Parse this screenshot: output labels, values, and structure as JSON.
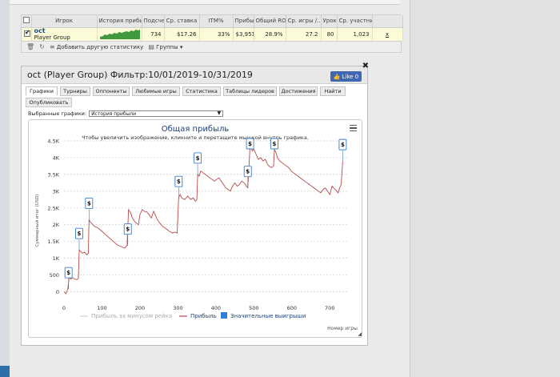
{
  "stats_table": {
    "headers": [
      "",
      "Игрок",
      "История прибы",
      "Подсче",
      "Ср. ставка",
      "ITM%",
      "Прибы",
      "Общий ROI",
      "Ср. игры /...",
      "Урок",
      "Ср. участни",
      ""
    ],
    "row": {
      "player_name": "oct",
      "player_group": "Player Group",
      "count": "734",
      "avg_stake": "$17.26",
      "itm": "33%",
      "profit": "$3,951",
      "roi": "28.9%",
      "avg_games": "27.2",
      "level": "80",
      "avg_entrants": "1,023",
      "remove": "x"
    },
    "toolbar": {
      "add_stats": "Добавить другую статистику",
      "groups": "Группы"
    }
  },
  "dialog": {
    "title": "oct (Player Group) Фильтр:10/01/2019-10/31/2019",
    "like_label": "Like 0",
    "tabs": [
      "Графики",
      "Турниры",
      "Оппоненты",
      "Любимые игры",
      "Статистика",
      "Таблицы лидеров",
      "Достижения",
      "Найти",
      "Опубликовать"
    ],
    "selected_graphs_label": "Выбранные графики:",
    "selected_graph_value": "История прибыли"
  },
  "chart_data": {
    "type": "line",
    "title": "Общая прибыль",
    "subtitle": "Чтобы увеличить изображение, кликните и перетащите мышкой внутрь графика.",
    "xlabel": "Номер игры",
    "ylabel": "Суммарный итог (USD)",
    "xlim": [
      0,
      750
    ],
    "ylim": [
      -250,
      4500
    ],
    "x_ticks": [
      0,
      100,
      200,
      300,
      400,
      500,
      600,
      700
    ],
    "y_ticks": [
      0,
      500,
      1000,
      1500,
      2000,
      2500,
      3000,
      3500,
      4000,
      4500
    ],
    "y_tick_labels": [
      "0",
      "500",
      "1K",
      "1.5K",
      "2K",
      "2.5K",
      "3K",
      "3.5K",
      "4K",
      "4.5K"
    ],
    "legend": [
      "Прибыль за минусом рейка",
      "Прибыль",
      "Значительные выигрыши"
    ],
    "legend_position": "bottom",
    "series": [
      {
        "name": "Прибыль",
        "color": "#b84a4a",
        "x": [
          0,
          5,
          10,
          14,
          18,
          22,
          28,
          34,
          38,
          40,
          44,
          48,
          54,
          60,
          64,
          66,
          68,
          72,
          80,
          90,
          100,
          110,
          120,
          130,
          140,
          150,
          160,
          166,
          170,
          176,
          180,
          186,
          190,
          196,
          200,
          206,
          212,
          218,
          224,
          230,
          236,
          240,
          246,
          252,
          260,
          266,
          272,
          278,
          286,
          292,
          298,
          302,
          306,
          310,
          318,
          326,
          334,
          340,
          346,
          350,
          352,
          356,
          360,
          366,
          372,
          378,
          384,
          390,
          396,
          402,
          408,
          414,
          420,
          426,
          432,
          438,
          444,
          450,
          456,
          462,
          468,
          474,
          478,
          480,
          484,
          490,
          496,
          500,
          506,
          512,
          518,
          524,
          530,
          536,
          540,
          546,
          552,
          554,
          558,
          562,
          568,
          574,
          580,
          586,
          592,
          598,
          604,
          610,
          616,
          622,
          628,
          634,
          640,
          646,
          652,
          658,
          664,
          670,
          676,
          682,
          688,
          694,
          700,
          706,
          710,
          714,
          718,
          722,
          726,
          730,
          734
        ],
        "values": [
          0,
          -60,
          80,
          450,
          380,
          420,
          380,
          360,
          400,
          1250,
          1200,
          1150,
          1180,
          1100,
          1150,
          2150,
          2100,
          2050,
          1950,
          1900,
          1800,
          1700,
          1600,
          1500,
          1400,
          1350,
          1300,
          1380,
          2450,
          2350,
          2200,
          2100,
          2050,
          2000,
          2300,
          2450,
          2400,
          2380,
          2300,
          2200,
          2400,
          2300,
          2150,
          2050,
          1950,
          1900,
          1850,
          1800,
          1750,
          1780,
          1750,
          2800,
          2900,
          2800,
          2750,
          2850,
          2750,
          2800,
          2700,
          2750,
          3500,
          3450,
          3600,
          3550,
          3500,
          3450,
          3400,
          3350,
          3300,
          3350,
          3400,
          3300,
          3200,
          3100,
          3050,
          3000,
          3150,
          3250,
          3150,
          3200,
          3300,
          3250,
          3200,
          3150,
          3100,
          4350,
          4200,
          4250,
          4100,
          3950,
          4000,
          3900,
          3950,
          3800,
          3750,
          3700,
          3750,
          4250,
          4150,
          4000,
          3900,
          3850,
          3800,
          3750,
          3700,
          3600,
          3550,
          3500,
          3450,
          3400,
          3350,
          3300,
          3250,
          3200,
          3150,
          3100,
          3050,
          3000,
          2950,
          3050,
          3100,
          3000,
          2900,
          3150,
          3100,
          3050,
          3000,
          2950,
          3100,
          3200,
          3900
        ]
      }
    ],
    "big_win_markers": {
      "symbol": "$",
      "x": [
        12,
        40,
        66,
        168,
        302,
        352,
        484,
        490,
        554,
        734
      ]
    }
  }
}
